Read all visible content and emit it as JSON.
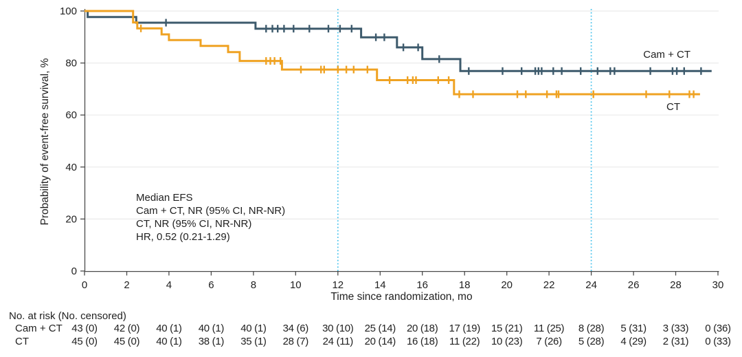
{
  "chart_data": {
    "type": "line",
    "subtype": "kaplan-meier-step",
    "title": "",
    "xlabel": "Time since randomization, mo",
    "ylabel": "Probability of event-free survival, %",
    "xlim": [
      0,
      30
    ],
    "ylim": [
      0,
      100
    ],
    "xticks": [
      0,
      2,
      4,
      6,
      8,
      10,
      12,
      14,
      16,
      18,
      20,
      22,
      24,
      26,
      28,
      30
    ],
    "yticks": [
      0,
      20,
      40,
      60,
      80,
      100
    ],
    "grid": "horizontal-light",
    "reference_lines_x": [
      12,
      24
    ],
    "annotation": {
      "lines": [
        "Median EFS",
        "Cam + CT, NR (95% CI, NR-NR)",
        "CT, NR (95% CI, NR-NR)",
        "HR, 0.52 (0.21-1.29)"
      ]
    },
    "series": [
      {
        "name": "Cam + CT",
        "color": "#3D5A6C",
        "steps": [
          [
            0,
            100
          ],
          [
            0.15,
            97.7
          ],
          [
            2.45,
            95.5
          ],
          [
            8.1,
            93.2
          ],
          [
            13.1,
            89.9
          ],
          [
            14.8,
            86.0
          ],
          [
            16.0,
            81.5
          ],
          [
            17.8,
            76.9
          ]
        ],
        "end_x": 29.7,
        "censor_marks": [
          [
            3.86,
            95.5
          ],
          [
            8.6,
            93.2
          ],
          [
            8.9,
            93.2
          ],
          [
            9.15,
            93.2
          ],
          [
            9.45,
            93.2
          ],
          [
            9.9,
            93.2
          ],
          [
            10.65,
            93.2
          ],
          [
            11.55,
            93.2
          ],
          [
            12.1,
            93.2
          ],
          [
            12.65,
            93.2
          ],
          [
            13.8,
            89.9
          ],
          [
            14.2,
            89.9
          ],
          [
            15.1,
            86.0
          ],
          [
            15.8,
            86.0
          ],
          [
            16.8,
            81.5
          ],
          [
            18.2,
            76.9
          ],
          [
            19.8,
            76.9
          ],
          [
            20.7,
            76.9
          ],
          [
            21.35,
            76.9
          ],
          [
            21.5,
            76.9
          ],
          [
            21.65,
            76.9
          ],
          [
            22.2,
            76.9
          ],
          [
            22.6,
            76.9
          ],
          [
            23.5,
            76.9
          ],
          [
            24.3,
            76.9
          ],
          [
            24.9,
            76.9
          ],
          [
            25.1,
            76.9
          ],
          [
            26.8,
            76.9
          ],
          [
            27.85,
            76.9
          ],
          [
            28.05,
            76.9
          ],
          [
            28.4,
            76.9
          ],
          [
            29.2,
            76.9
          ]
        ]
      },
      {
        "name": "CT",
        "color": "#EFA222",
        "steps": [
          [
            0,
            100
          ],
          [
            2.3,
            95.6
          ],
          [
            2.5,
            93.3
          ],
          [
            3.65,
            91.0
          ],
          [
            4.0,
            88.8
          ],
          [
            5.5,
            86.6
          ],
          [
            6.8,
            84.2
          ],
          [
            7.35,
            80.8
          ],
          [
            9.35,
            77.5
          ],
          [
            13.85,
            73.4
          ],
          [
            17.5,
            68.0
          ]
        ],
        "end_x": 29.15,
        "censor_marks": [
          [
            2.67,
            93.3
          ],
          [
            8.6,
            80.8
          ],
          [
            8.8,
            80.8
          ],
          [
            9.0,
            80.8
          ],
          [
            9.28,
            80.8
          ],
          [
            10.25,
            77.5
          ],
          [
            11.2,
            77.5
          ],
          [
            11.35,
            77.5
          ],
          [
            12.0,
            77.5
          ],
          [
            12.4,
            77.5
          ],
          [
            12.75,
            77.5
          ],
          [
            13.4,
            77.5
          ],
          [
            14.45,
            73.4
          ],
          [
            15.3,
            73.4
          ],
          [
            15.55,
            73.4
          ],
          [
            15.7,
            73.4
          ],
          [
            16.75,
            73.4
          ],
          [
            17.25,
            73.4
          ],
          [
            17.75,
            68.0
          ],
          [
            18.4,
            68.0
          ],
          [
            20.5,
            68.0
          ],
          [
            20.9,
            68.0
          ],
          [
            21.9,
            68.0
          ],
          [
            22.35,
            68.0
          ],
          [
            22.45,
            68.0
          ],
          [
            24.1,
            68.0
          ],
          [
            26.6,
            68.0
          ],
          [
            27.7,
            68.0
          ],
          [
            28.65,
            68.0
          ],
          [
            28.85,
            68.0
          ]
        ]
      }
    ],
    "risk_table": {
      "header": "No. at risk (No. censored)",
      "time_points": [
        0,
        2,
        4,
        6,
        8,
        10,
        12,
        14,
        16,
        18,
        20,
        22,
        24,
        26,
        28,
        30
      ],
      "rows": [
        {
          "name": "Cam + CT",
          "values": [
            "43 (0)",
            "42 (0)",
            "40 (1)",
            "40 (1)",
            "40 (1)",
            "34 (6)",
            "30 (10)",
            "25 (14)",
            "20 (18)",
            "17 (19)",
            "15 (21)",
            "11 (25)",
            "8 (28)",
            "5 (31)",
            "3 (33)",
            "0 (36)"
          ]
        },
        {
          "name": "CT",
          "values": [
            "45 (0)",
            "45 (0)",
            "40 (1)",
            "38 (1)",
            "35 (1)",
            "28 (7)",
            "24 (11)",
            "20 (14)",
            "16 (18)",
            "11 (22)",
            "10 (23)",
            "7 (26)",
            "5 (28)",
            "4 (29)",
            "2 (31)",
            "0 (33)"
          ]
        }
      ]
    },
    "colors": {
      "camct_line": "#3D5A6C",
      "ct_line": "#EFA222",
      "reference_line": "#45C1EC",
      "gridline": "#EAEAEA",
      "axis": "#4A4A4A",
      "text": "#212121"
    }
  }
}
